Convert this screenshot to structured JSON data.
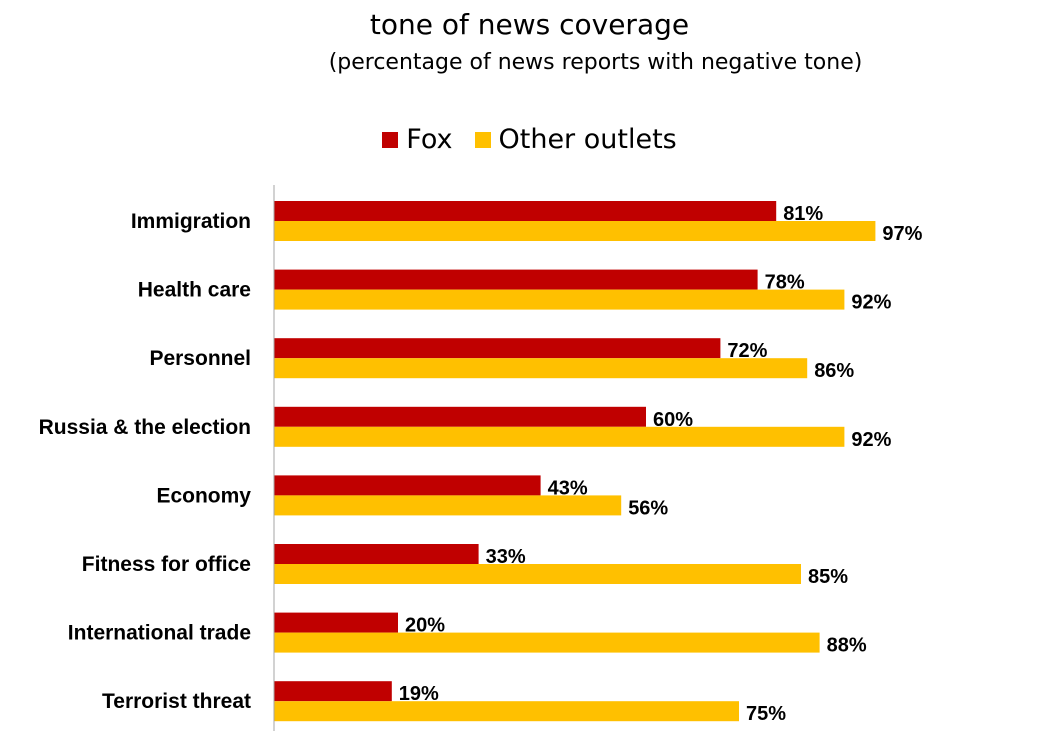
{
  "chart_data": {
    "type": "bar",
    "orientation": "horizontal",
    "title": "tone of news coverage",
    "subtitle": "(percentage of news reports with negative tone)",
    "categories": [
      "Immigration",
      "Health care",
      "Personnel",
      "Russia & the election",
      "Economy",
      "Fitness for office",
      "International trade",
      "Terrorist threat"
    ],
    "series": [
      {
        "name": "Fox",
        "color": "#c00000",
        "values": [
          81,
          78,
          72,
          60,
          43,
          33,
          20,
          19
        ],
        "labels": [
          "81%",
          "78%",
          "72%",
          "60%",
          "43%",
          "33%",
          "20%",
          "19%"
        ]
      },
      {
        "name": "Other outlets",
        "color": "#ffc000",
        "values": [
          97,
          92,
          86,
          92,
          56,
          85,
          88,
          75
        ],
        "labels": [
          "97%",
          "92%",
          "86%",
          "92%",
          "56%",
          "85%",
          "88%",
          "75%"
        ]
      }
    ],
    "xlim": [
      0,
      100
    ],
    "grid": false,
    "legend_position": "top"
  }
}
